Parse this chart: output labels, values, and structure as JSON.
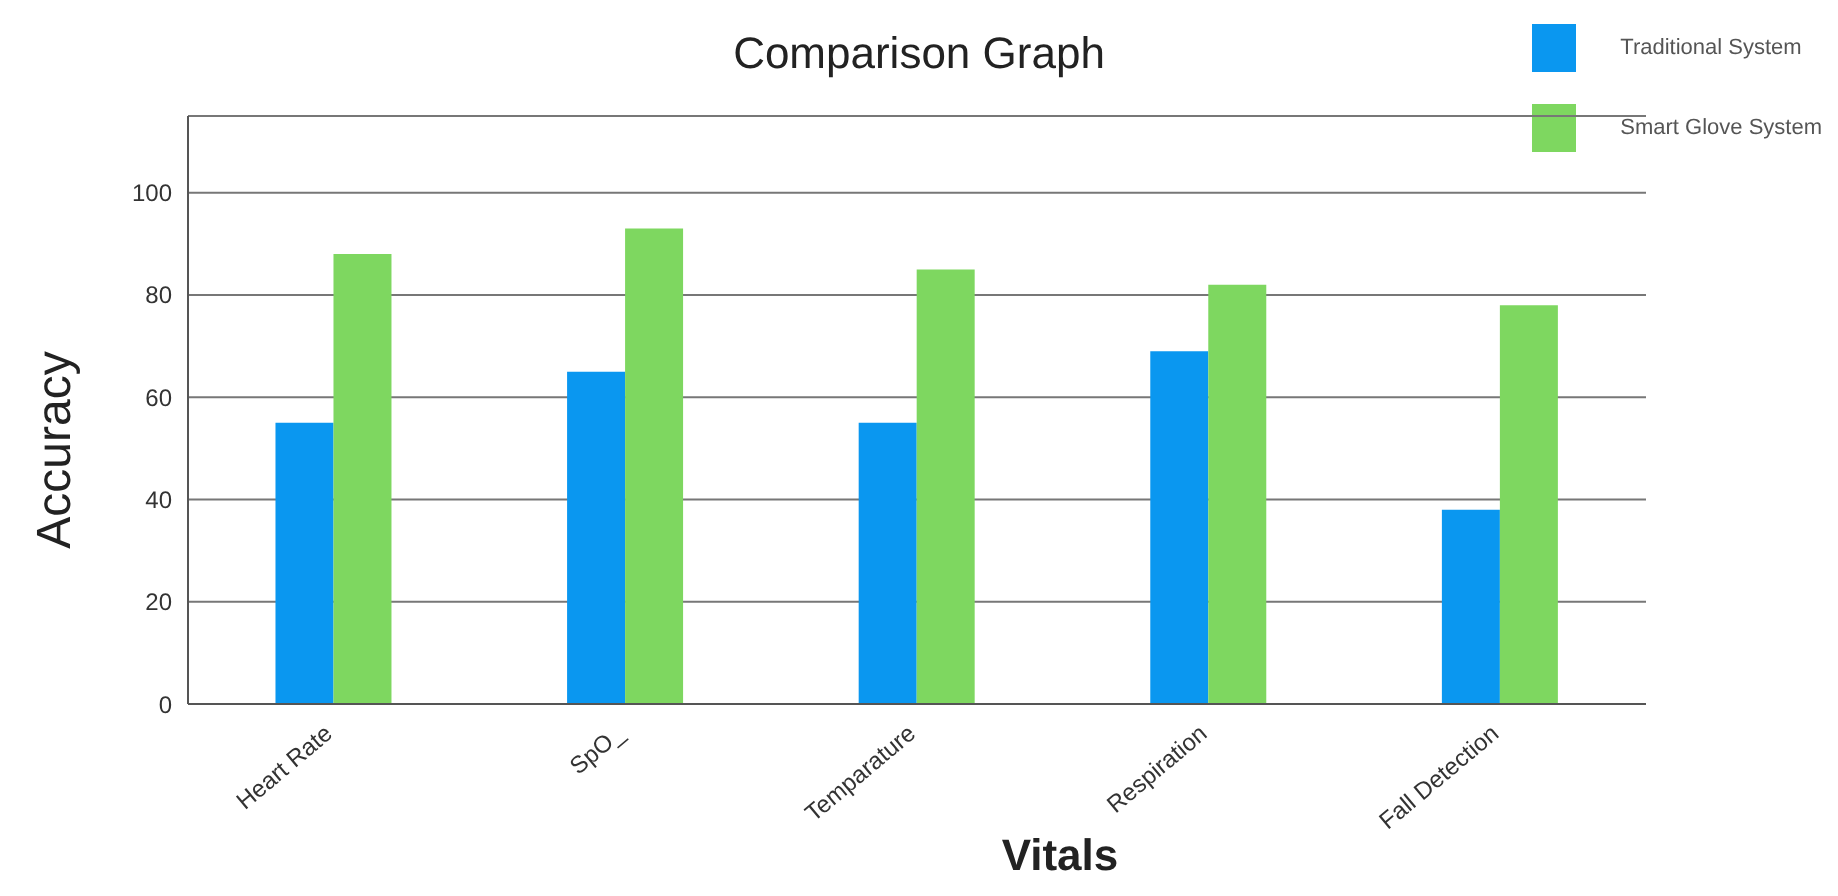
{
  "chart_data": {
    "type": "bar",
    "title": "Comparison Graph",
    "xlabel": "Vitals",
    "ylabel": "Accuracy",
    "categories": [
      "Heart Rate",
      "SpO_",
      "Temparature",
      "Respiration",
      "Fall Detection"
    ],
    "series": [
      {
        "name": "Traditional System",
        "color": "#0a97f0",
        "values": [
          55,
          65,
          55,
          69,
          38
        ]
      },
      {
        "name": "Smart Glove System",
        "color": "#7ed760",
        "values": [
          88,
          93,
          85,
          82,
          78
        ]
      }
    ],
    "ylim": [
      0,
      115
    ],
    "yticks": [
      0,
      20,
      40,
      60,
      80,
      100
    ],
    "grid": "y",
    "legend": "top right"
  }
}
